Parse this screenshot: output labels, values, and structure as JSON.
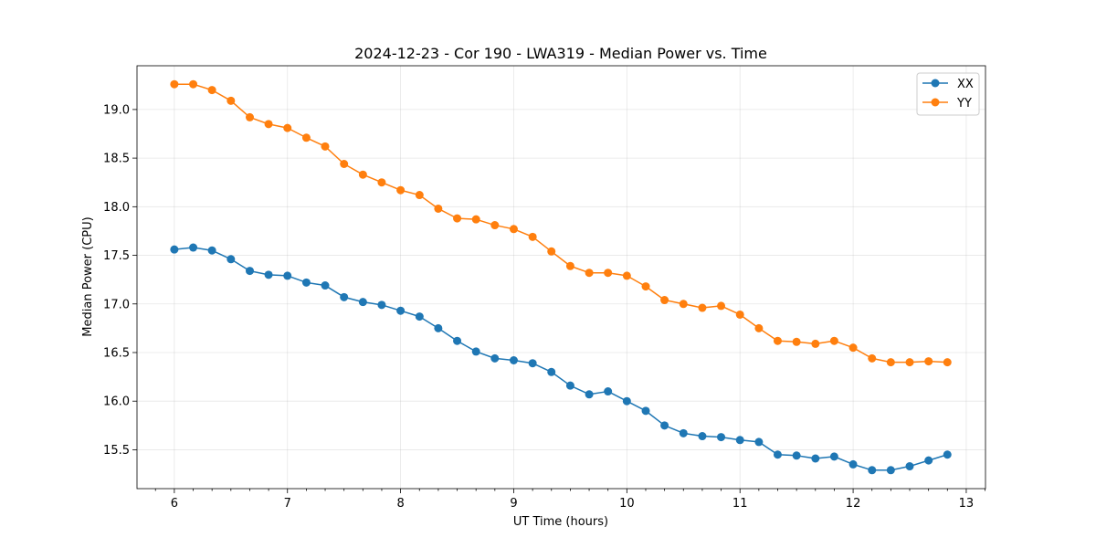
{
  "chart_data": {
    "type": "line",
    "title": "2024-12-23 - Cor 190 - LWA319 - Median Power vs. Time",
    "xlabel": "UT Time (hours)",
    "ylabel": "Median Power (CPU)",
    "xlim": [
      5.67,
      13.17
    ],
    "ylim": [
      15.1,
      19.45
    ],
    "xticks": [
      6,
      7,
      8,
      9,
      10,
      11,
      12,
      13
    ],
    "yticks": [
      15.5,
      16.0,
      16.5,
      17.0,
      17.5,
      18.0,
      18.5,
      19.0
    ],
    "ytick_labels": [
      "15.5",
      "16.0",
      "16.5",
      "17.0",
      "17.5",
      "18.0",
      "18.5",
      "19.0"
    ],
    "grid": true,
    "legend_position": "top-right",
    "x": [
      6.0,
      6.167,
      6.333,
      6.5,
      6.667,
      6.833,
      7.0,
      7.167,
      7.333,
      7.5,
      7.667,
      7.833,
      8.0,
      8.167,
      8.333,
      8.5,
      8.667,
      8.833,
      9.0,
      9.167,
      9.333,
      9.5,
      9.667,
      9.833,
      10.0,
      10.167,
      10.333,
      10.5,
      10.667,
      10.833,
      11.0,
      11.167,
      11.333,
      11.5,
      11.667,
      11.833,
      12.0,
      12.167,
      12.333,
      12.5,
      12.667,
      12.833
    ],
    "series": [
      {
        "name": "XX",
        "color": "#1f77b4",
        "values": [
          17.56,
          17.58,
          17.55,
          17.46,
          17.34,
          17.3,
          17.29,
          17.22,
          17.19,
          17.07,
          17.02,
          16.99,
          16.93,
          16.87,
          16.75,
          16.62,
          16.51,
          16.44,
          16.42,
          16.39,
          16.3,
          16.16,
          16.07,
          16.1,
          16.0,
          15.9,
          15.75,
          15.67,
          15.64,
          15.63,
          15.6,
          15.58,
          15.45,
          15.44,
          15.41,
          15.43,
          15.35,
          15.29,
          15.29,
          15.33,
          15.39,
          15.45
        ]
      },
      {
        "name": "YY",
        "color": "#ff7f0e",
        "values": [
          19.26,
          19.26,
          19.2,
          19.09,
          18.92,
          18.85,
          18.81,
          18.71,
          18.62,
          18.44,
          18.33,
          18.25,
          18.17,
          18.12,
          17.98,
          17.88,
          17.87,
          17.81,
          17.77,
          17.69,
          17.54,
          17.39,
          17.32,
          17.32,
          17.29,
          17.18,
          17.04,
          17.0,
          16.96,
          16.98,
          16.89,
          16.75,
          16.62,
          16.61,
          16.59,
          16.62,
          16.55,
          16.44,
          16.4,
          16.4,
          16.41,
          16.4
        ]
      }
    ]
  }
}
